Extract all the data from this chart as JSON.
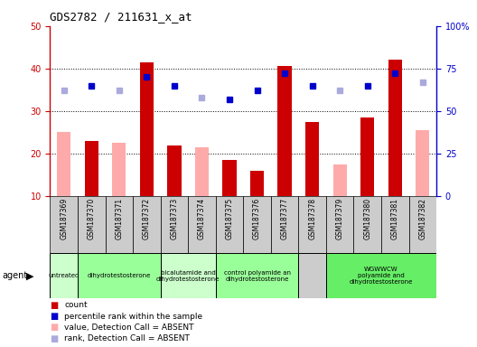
{
  "title": "GDS2782 / 211631_x_at",
  "samples": [
    "GSM187369",
    "GSM187370",
    "GSM187371",
    "GSM187372",
    "GSM187373",
    "GSM187374",
    "GSM187375",
    "GSM187376",
    "GSM187377",
    "GSM187378",
    "GSM187379",
    "GSM187380",
    "GSM187381",
    "GSM187382"
  ],
  "count_values": [
    null,
    23,
    null,
    41.5,
    22,
    null,
    18.5,
    16,
    40.5,
    27.5,
    null,
    28.5,
    42,
    null
  ],
  "value_absent": [
    25,
    null,
    22.5,
    null,
    null,
    21.5,
    null,
    null,
    null,
    null,
    17.5,
    null,
    null,
    25.5
  ],
  "rank_present_pct": [
    null,
    65,
    null,
    70,
    65,
    null,
    57,
    62,
    72,
    65,
    null,
    65,
    72,
    null
  ],
  "rank_absent_pct": [
    62,
    null,
    62,
    null,
    null,
    58,
    null,
    null,
    null,
    null,
    62,
    null,
    null,
    67
  ],
  "ylim_left": [
    10,
    50
  ],
  "ylim_right": [
    0,
    100
  ],
  "yticks_left": [
    10,
    20,
    30,
    40,
    50
  ],
  "yticks_right": [
    0,
    25,
    50,
    75,
    100
  ],
  "bar_color_count": "#cc0000",
  "bar_color_absent": "#ffaaaa",
  "dot_color_present": "#0000cc",
  "dot_color_absent": "#aaaadd",
  "left_axis_color": "#cc0000",
  "right_axis_color": "#0000cc",
  "background_plot": "#ffffff",
  "background_table": "#cccccc",
  "agent_groups": [
    {
      "label": "untreated",
      "start": 0,
      "end": 0,
      "color": "#ccffcc"
    },
    {
      "label": "dihydrotestosterone",
      "start": 1,
      "end": 3,
      "color": "#99ff99"
    },
    {
      "label": "bicalutamide and\ndihydrotestosterone",
      "start": 4,
      "end": 5,
      "color": "#ccffcc"
    },
    {
      "label": "control polyamide an\ndihydrotestosterone",
      "start": 6,
      "end": 8,
      "color": "#99ff99"
    },
    {
      "label": "WGWWCW\npolyamide and\ndihydrotestosterone",
      "start": 10,
      "end": 13,
      "color": "#66ee66"
    }
  ],
  "legend_items": [
    {
      "color": "#cc0000",
      "label": "count"
    },
    {
      "color": "#0000cc",
      "label": "percentile rank within the sample"
    },
    {
      "color": "#ffaaaa",
      "label": "value, Detection Call = ABSENT"
    },
    {
      "color": "#aaaadd",
      "label": "rank, Detection Call = ABSENT"
    }
  ]
}
